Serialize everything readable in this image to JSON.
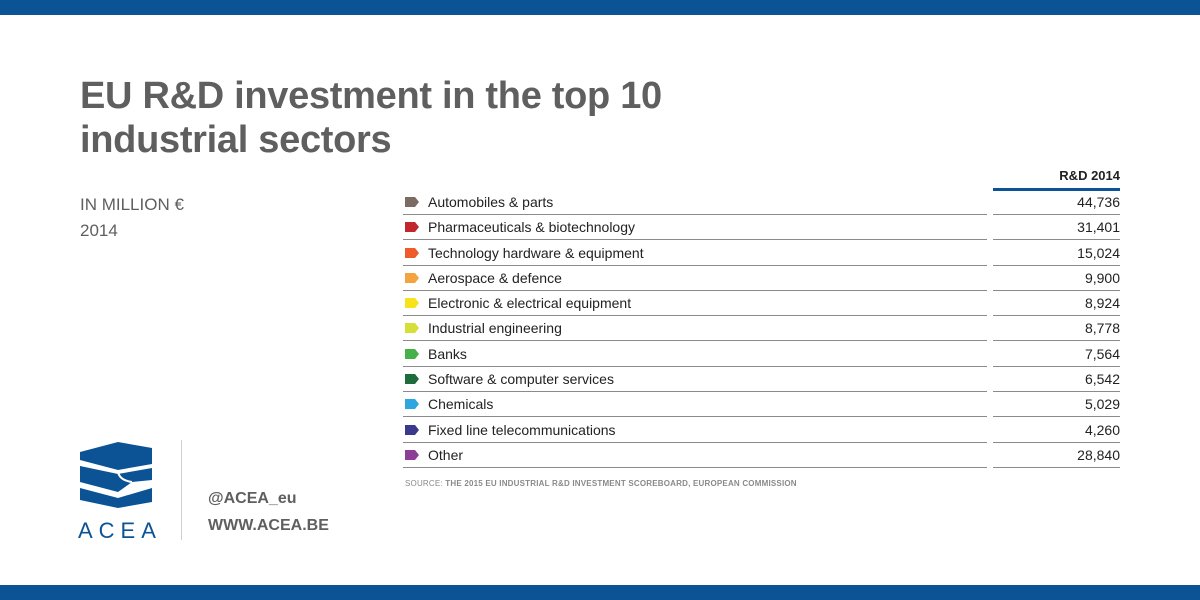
{
  "title_line1": "EU R&D investment in the top 10",
  "title_line2": "industrial sectors",
  "subtitle_line1": "IN MILLION €",
  "subtitle_line2": "2014",
  "source_prefix": "SOURCE:",
  "source_text": "THE 2015 EU INDUSTRIAL R&D INVESTMENT SCOREBOARD, EUROPEAN COMMISSION",
  "logo_text": "ACEA",
  "handle": "@ACEA_eu",
  "website": "WWW.ACEA.BE",
  "colors": {
    "brand_blue": "#0b5394",
    "title_gray": "#5f5f5f"
  },
  "chart_data": {
    "type": "table",
    "column_header": "R&D 2014",
    "rows": [
      {
        "label": "Automobiles & parts",
        "value": "44,736",
        "color": "#7b6b63"
      },
      {
        "label": "Pharmaceuticals & biotechnology",
        "value": "31,401",
        "color": "#c1272d"
      },
      {
        "label": "Technology hardware & equipment",
        "value": "15,024",
        "color": "#ee5a2a"
      },
      {
        "label": "Aerospace & defence",
        "value": "9,900",
        "color": "#f4a340"
      },
      {
        "label": "Electronic & electrical equipment",
        "value": "8,924",
        "color": "#f7e21b"
      },
      {
        "label": "Industrial engineering",
        "value": "8,778",
        "color": "#d6de38"
      },
      {
        "label": "Banks",
        "value": "7,564",
        "color": "#46b14b"
      },
      {
        "label": "Software & computer services",
        "value": "6,542",
        "color": "#1e6b3c"
      },
      {
        "label": "Chemicals",
        "value": "5,029",
        "color": "#2ea7e0"
      },
      {
        "label": "Fixed line telecommunications",
        "value": "4,260",
        "color": "#3a3a8c"
      },
      {
        "label": "Other",
        "value": "28,840",
        "color": "#8e3d97"
      }
    ]
  }
}
